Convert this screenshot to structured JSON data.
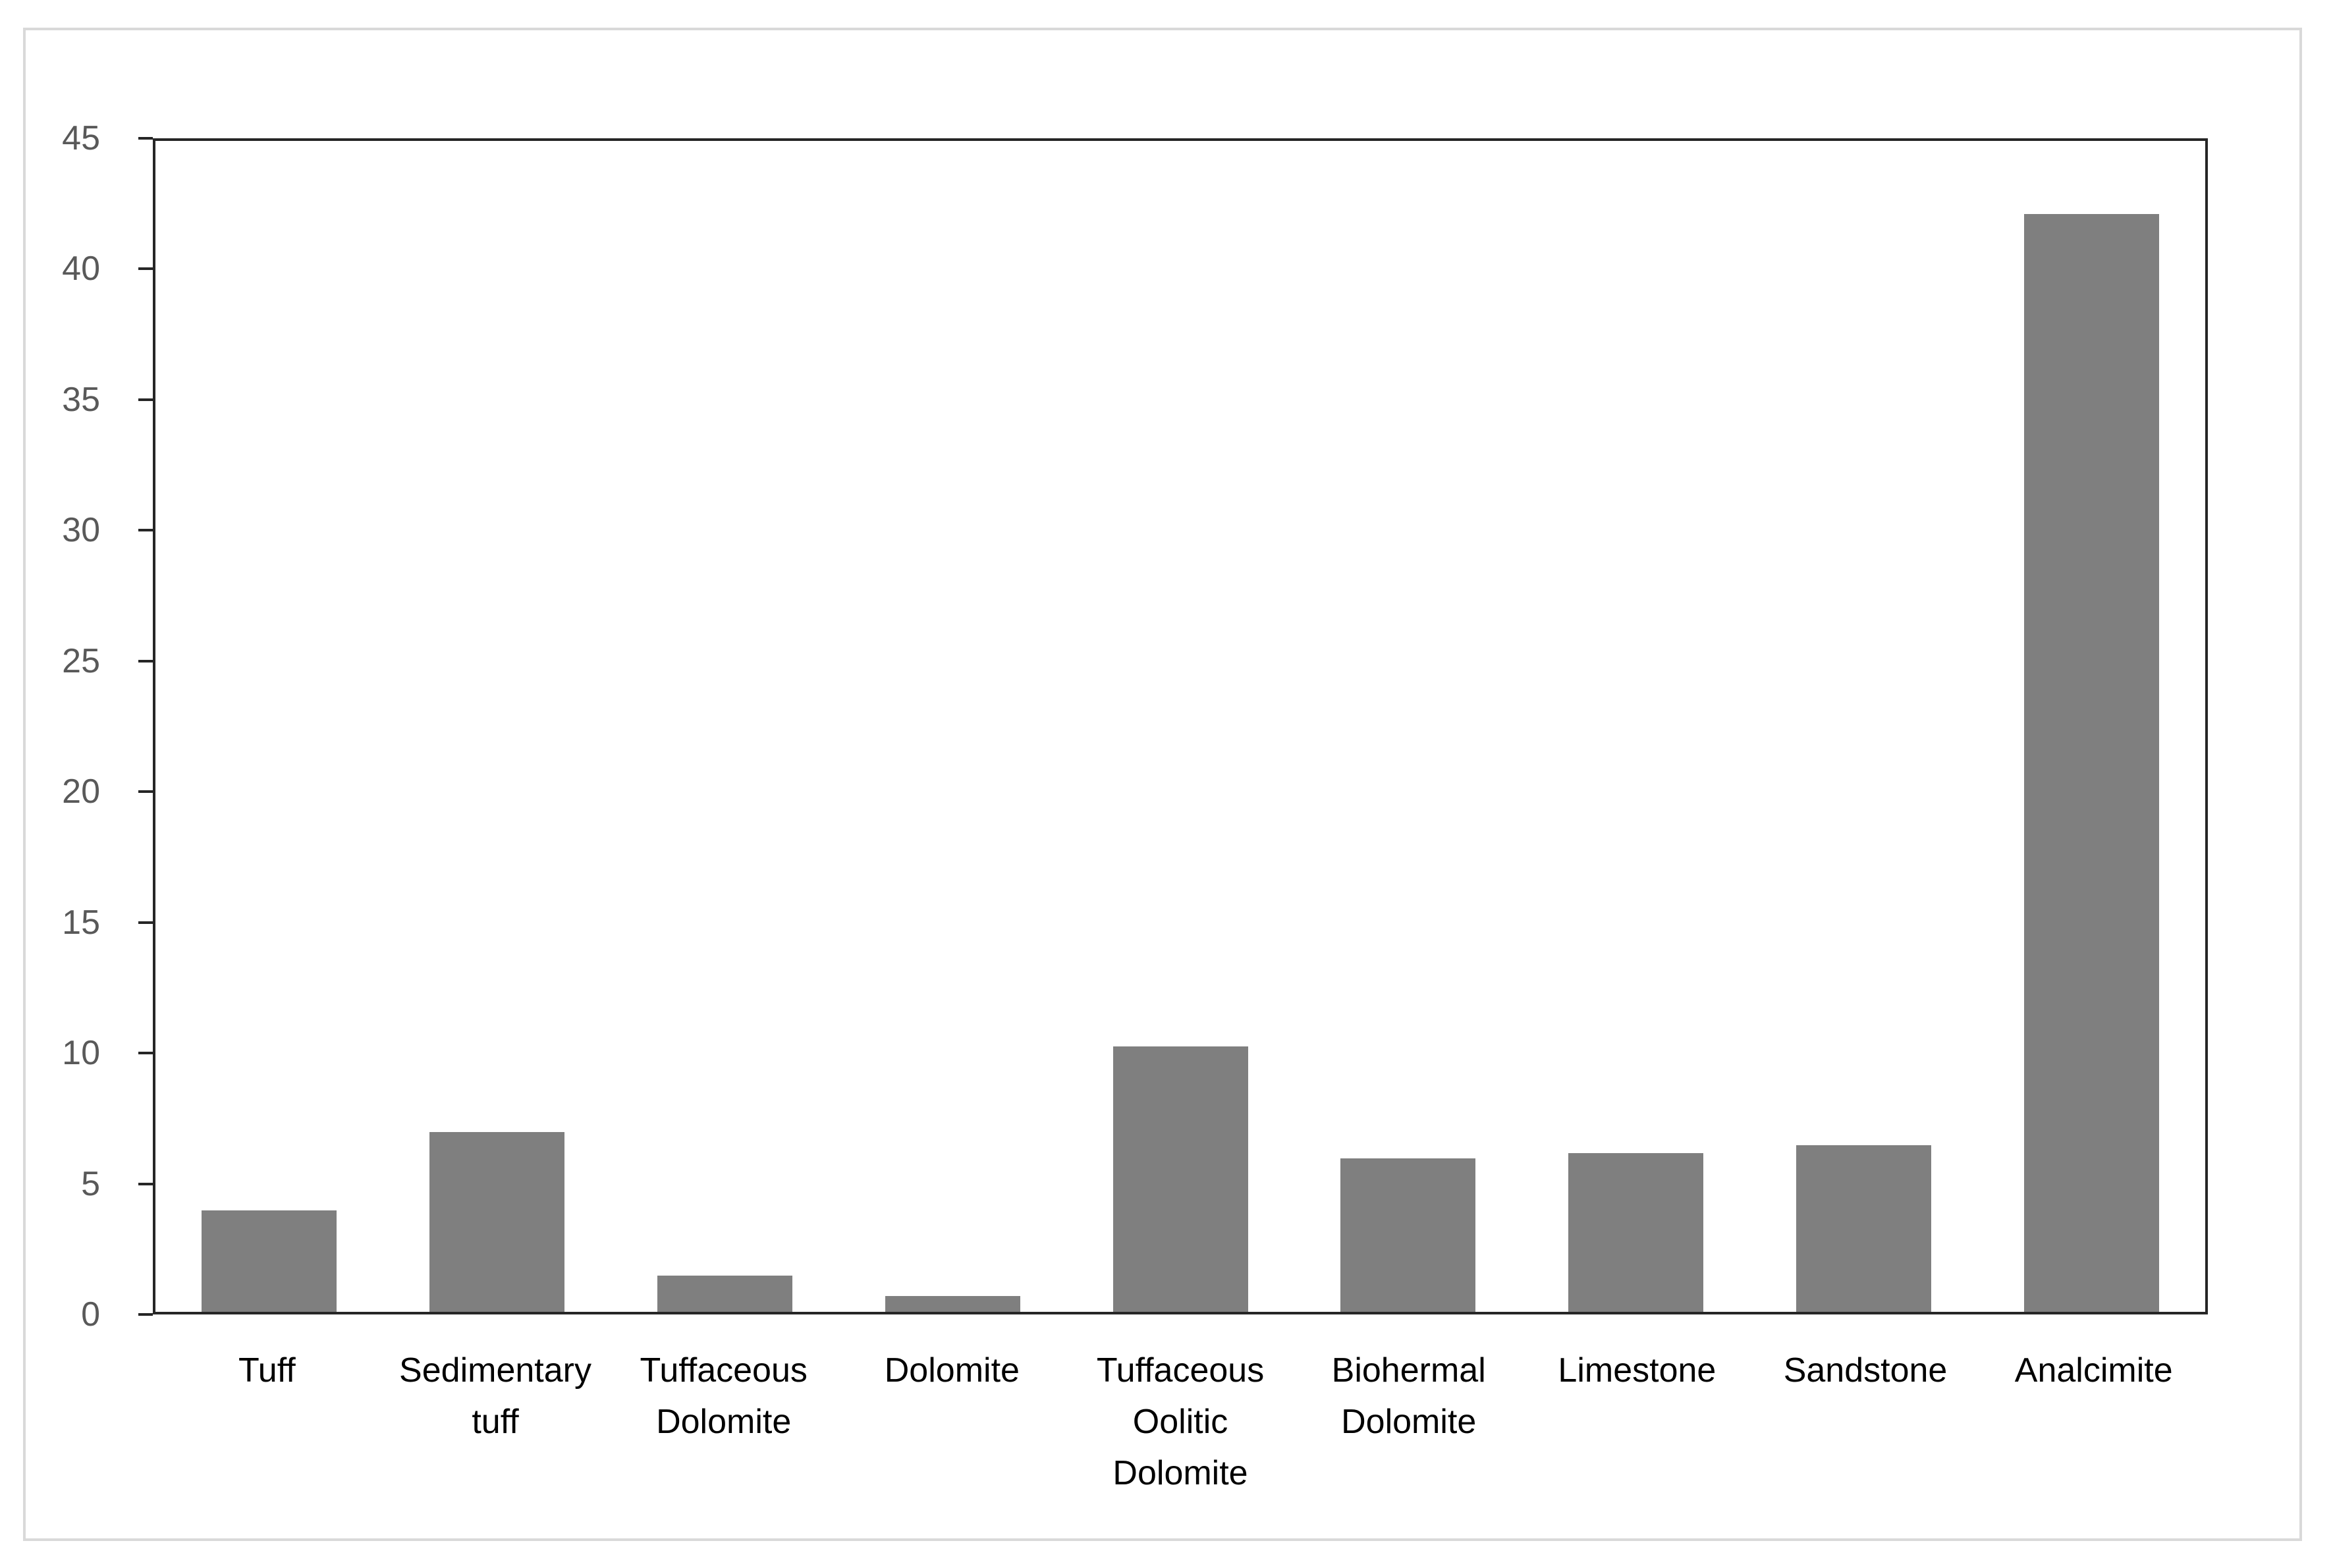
{
  "chart_data": {
    "type": "bar",
    "title": "",
    "categories": [
      "Tuff",
      "Sedimentary tuff",
      "Tuffaceous Dolomite",
      "Dolomite",
      "Tuffaceous Oolitic Dolomite",
      "Biohermal Dolomite",
      "Limestone",
      "Sandstone",
      "Analcimite"
    ],
    "values": [
      3.9,
      6.9,
      1.4,
      0.6,
      10.2,
      5.9,
      6.1,
      6.4,
      42.2
    ],
    "xlabel": "",
    "ylabel": "",
    "ylim": [
      0,
      45
    ],
    "yticks": [
      0,
      5,
      10,
      15,
      20,
      25,
      30,
      35,
      40,
      45
    ],
    "grid": false,
    "legend": "none",
    "bar_color": "#7f7f7f",
    "axis_color": "#262626",
    "ytick_label_color": "#595959",
    "xtick_label_color": "#000000",
    "figure_border_color": "#d9d9d9",
    "background_color": "#ffffff"
  }
}
